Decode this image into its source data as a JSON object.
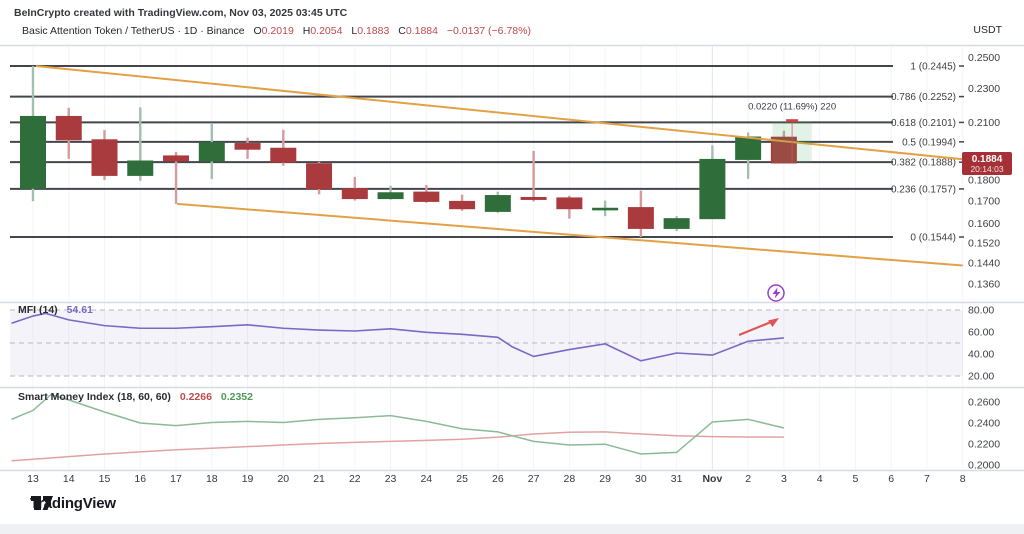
{
  "header": {
    "credit": "BeInCrypto created with TradingView.com, Nov 03, 2025 03:45 UTC",
    "symbol": "Basic Attention Token / TetherUS · 1D · Binance",
    "ohlc": [
      {
        "label": "O",
        "value": "0.2019"
      },
      {
        "label": "H",
        "value": "0.2054"
      },
      {
        "label": "L",
        "value": "0.1883"
      },
      {
        "label": "C",
        "value": "0.1884"
      }
    ],
    "change": "−0.0137 (−6.78%)",
    "quote_currency": "USDT"
  },
  "footer": {
    "logo_text": "TradingView"
  },
  "colors": {
    "candle_up": "#2f6e3b",
    "candle_up_wick": "#a3bfae",
    "candle_down": "#a93a3e",
    "candle_down_wick": "#d79a9c",
    "fib_line": "#43464d",
    "trendline": "#e2a144",
    "separator": "#d8dbe1",
    "grid": "#f3f4f7",
    "grid_month": "#e4e6ec",
    "axis_text": "#3c3f46",
    "badge_bg": "#a53136",
    "badge_text": "#ffffff",
    "mfi_line": "#7b68c4",
    "mfi_band": "rgba(123,104,196,0.08)",
    "dashed_level": "#b4b7c1",
    "arrow": "#e05454",
    "flash_marker": "#9b3fc4",
    "smi_green": "#8cba97",
    "smi_red": "#e2a2a2",
    "measure_fill": "rgba(76,175,100,0.16)",
    "measure_mark": "#cc4444"
  },
  "chart_data": [
    {
      "type": "candlestick",
      "title": "Basic Attention Token / TetherUS · 1D · Binance",
      "scale": "log",
      "x_labels": [
        "13",
        "14",
        "15",
        "16",
        "17",
        "18",
        "19",
        "20",
        "21",
        "22",
        "23",
        "24",
        "25",
        "26",
        "27",
        "28",
        "29",
        "30",
        "31",
        "Nov",
        "2",
        "3",
        "4",
        "5",
        "6",
        "7",
        "8"
      ],
      "month_label_index": 19,
      "candles": [
        {
          "o": 0.176,
          "h": 0.2445,
          "l": 0.17,
          "c": 0.2135
        },
        {
          "o": 0.2135,
          "h": 0.2185,
          "l": 0.1905,
          "c": 0.2005
        },
        {
          "o": 0.2005,
          "h": 0.2058,
          "l": 0.18,
          "c": 0.1822
        },
        {
          "o": 0.1822,
          "h": 0.2188,
          "l": 0.1796,
          "c": 0.1894
        },
        {
          "o": 0.192,
          "h": 0.194,
          "l": 0.1688,
          "c": 0.1894
        },
        {
          "o": 0.1894,
          "h": 0.2098,
          "l": 0.1804,
          "c": 0.199
        },
        {
          "o": 0.1985,
          "h": 0.2017,
          "l": 0.1905,
          "c": 0.1955
        },
        {
          "o": 0.196,
          "h": 0.206,
          "l": 0.187,
          "c": 0.1888
        },
        {
          "o": 0.188,
          "h": 0.189,
          "l": 0.1732,
          "c": 0.1758
        },
        {
          "o": 0.1758,
          "h": 0.1815,
          "l": 0.1703,
          "c": 0.1712
        },
        {
          "o": 0.1712,
          "h": 0.1772,
          "l": 0.1707,
          "c": 0.1739
        },
        {
          "o": 0.1742,
          "h": 0.1776,
          "l": 0.1693,
          "c": 0.1699
        },
        {
          "o": 0.1699,
          "h": 0.173,
          "l": 0.1657,
          "c": 0.1666
        },
        {
          "o": 0.1654,
          "h": 0.1744,
          "l": 0.1648,
          "c": 0.1726
        },
        {
          "o": 0.1717,
          "h": 0.1946,
          "l": 0.1699,
          "c": 0.1708
        },
        {
          "o": 0.1715,
          "h": 0.1725,
          "l": 0.1622,
          "c": 0.1666
        },
        {
          "o": 0.1662,
          "h": 0.1703,
          "l": 0.1633,
          "c": 0.1668
        },
        {
          "o": 0.1671,
          "h": 0.1749,
          "l": 0.1544,
          "c": 0.158
        },
        {
          "o": 0.158,
          "h": 0.1633,
          "l": 0.1569,
          "c": 0.1622
        },
        {
          "o": 0.1622,
          "h": 0.1975,
          "l": 0.1622,
          "c": 0.1902
        },
        {
          "o": 0.1902,
          "h": 0.2045,
          "l": 0.1805,
          "c": 0.202
        },
        {
          "o": 0.2019,
          "h": 0.2054,
          "l": 0.1883,
          "c": 0.1884
        }
      ],
      "fib_levels": [
        {
          "label": "1 (0.2445)",
          "price": 0.2445
        },
        {
          "label": "0.786 (0.2252)",
          "price": 0.2252
        },
        {
          "label": "0.618 (0.2101)",
          "price": 0.2101
        },
        {
          "label": "0.5 (0.1994)",
          "price": 0.1994
        },
        {
          "label": "0.382 (0.1888)",
          "price": 0.1888
        },
        {
          "label": "0.236 (0.1757)",
          "price": 0.1757
        },
        {
          "label": "0 (0.1544)",
          "price": 0.1544
        }
      ],
      "trendlines": [
        {
          "name": "upper-descending",
          "d1": 0.08,
          "p1": 0.2445,
          "d2": 26.0,
          "p2": 0.1903
        },
        {
          "name": "lower-descending",
          "d1": 4.03,
          "p1": 0.1688,
          "d2": 26.0,
          "p2": 0.143
        }
      ],
      "y_ticks": [
        {
          "text": "0.2500",
          "price": 0.25
        },
        {
          "text": "0.2300",
          "price": 0.23
        },
        {
          "text": "0.2100",
          "price": 0.21
        },
        {
          "text": "0.1800",
          "price": 0.18
        },
        {
          "text": "0.1700",
          "price": 0.17
        },
        {
          "text": "0.1600",
          "price": 0.16
        },
        {
          "text": "0.1520",
          "price": 0.152
        },
        {
          "text": "0.1440",
          "price": 0.144
        },
        {
          "text": "0.1360",
          "price": 0.136
        }
      ],
      "last_price_badge": {
        "price_text": "0.1884",
        "price": 0.1884,
        "countdown": "20:14:03"
      },
      "measure_tool": {
        "label": "0.0220 (11.69%) 220",
        "p_top": 0.2105,
        "p_bottom": 0.1885,
        "d_start": 20.68,
        "d_end": 21.78
      }
    },
    {
      "type": "line",
      "title": "MFI (14)",
      "value_label": "54.61",
      "x": [
        -0.6,
        0,
        0.35,
        1,
        2,
        3,
        4,
        5,
        6,
        7,
        8,
        9,
        10,
        11,
        12,
        13,
        13.4,
        14,
        15,
        16,
        17,
        18,
        19,
        20,
        21
      ],
      "v": [
        68,
        74.5,
        77,
        71,
        65.8,
        63.4,
        63.4,
        64.8,
        66.5,
        63.4,
        61.8,
        60.9,
        62.9,
        59.7,
        57.9,
        55.2,
        46.6,
        37.8,
        44,
        49.2,
        33.8,
        40.9,
        39,
        51.6,
        54.61
      ],
      "levels": [
        80,
        50,
        20
      ],
      "y_ticks": [
        {
          "text": "80.00",
          "v": 80
        },
        {
          "text": "60.00",
          "v": 60
        },
        {
          "text": "40.00",
          "v": 40
        },
        {
          "text": "20.00",
          "v": 20
        }
      ],
      "annotations": {
        "arrow": "up-right trend arrow",
        "marker": "flash-circle"
      }
    },
    {
      "type": "line",
      "title": "Smart Money Index (18, 60, 60)",
      "series": [
        {
          "name": "smi-fast",
          "color_key": "smi_red",
          "last_value": "0.2266",
          "x": [
            -0.6,
            0,
            1,
            2,
            3,
            4,
            5,
            6,
            7,
            8,
            9,
            10,
            11,
            12,
            13,
            14,
            15,
            16,
            17,
            18,
            19,
            20,
            21
          ],
          "v": [
            0.204,
            0.2055,
            0.208,
            0.2105,
            0.2125,
            0.2145,
            0.216,
            0.2175,
            0.219,
            0.2205,
            0.2215,
            0.2225,
            0.2235,
            0.2245,
            0.2265,
            0.2295,
            0.2312,
            0.2315,
            0.2295,
            0.2278,
            0.227,
            0.2267,
            0.2266
          ]
        },
        {
          "name": "smi-slow",
          "color_key": "smi_green",
          "last_value": "0.2352",
          "x": [
            -0.6,
            0,
            0.5,
            1,
            2,
            3,
            4,
            5,
            6,
            7,
            8,
            9,
            10,
            11,
            12,
            13,
            14,
            15,
            16,
            17,
            18,
            19,
            20,
            21
          ],
          "v": [
            0.2435,
            0.252,
            0.267,
            0.262,
            0.2505,
            0.24,
            0.2375,
            0.2405,
            0.2415,
            0.2405,
            0.2435,
            0.245,
            0.247,
            0.2415,
            0.2345,
            0.2315,
            0.2225,
            0.219,
            0.2198,
            0.2105,
            0.212,
            0.241,
            0.2435,
            0.2352
          ]
        }
      ],
      "y_ticks": [
        {
          "text": "0.2600",
          "v": 0.26
        },
        {
          "text": "0.2400",
          "v": 0.24
        },
        {
          "text": "0.2200",
          "v": 0.22
        },
        {
          "text": "0.2000",
          "v": 0.2
        }
      ]
    }
  ]
}
